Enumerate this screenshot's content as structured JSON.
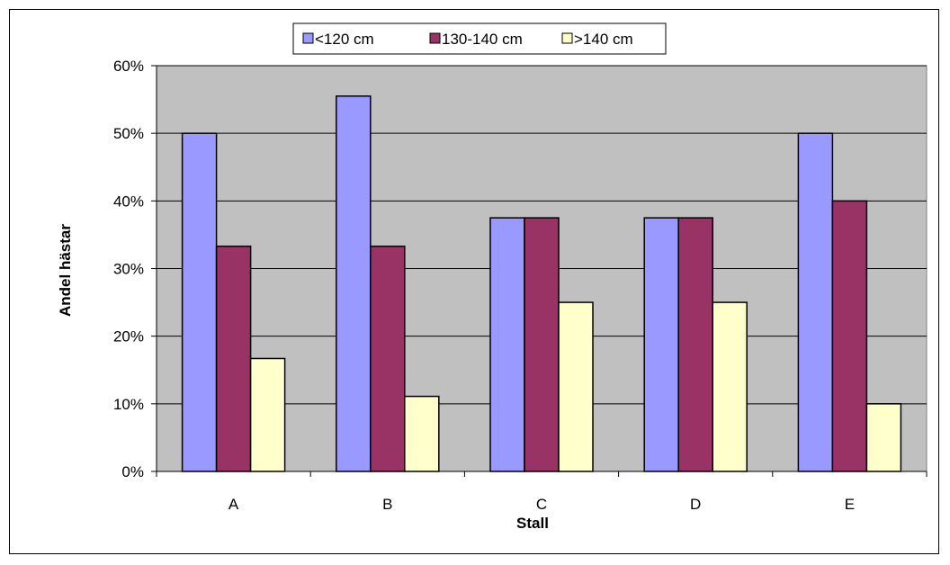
{
  "chart_data": {
    "type": "bar",
    "categories": [
      "A",
      "B",
      "C",
      "D",
      "E"
    ],
    "series": [
      {
        "name": "<120 cm",
        "color": "#9999ff",
        "values": [
          50,
          55.5,
          37.5,
          37.5,
          50
        ]
      },
      {
        "name": "130-140 cm",
        "color": "#993366",
        "values": [
          33.3,
          33.3,
          37.5,
          37.5,
          40
        ]
      },
      {
        "name": ">140 cm",
        "color": "#ffffcc",
        "values": [
          16.7,
          11.1,
          25,
          25,
          10
        ]
      }
    ],
    "xlabel": "Stall",
    "ylabel": "Andel hästar",
    "ylim": [
      0,
      60
    ],
    "yticks": [
      "0%",
      "10%",
      "20%",
      "30%",
      "40%",
      "50%",
      "60%"
    ],
    "plot_background": "#c0c0c0",
    "grid": true,
    "legend_position": "top"
  }
}
